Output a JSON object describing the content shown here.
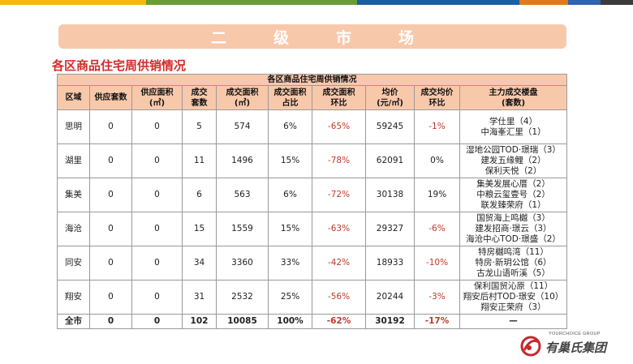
{
  "top_bar_colors": [
    "#f5b811",
    "#f5b811",
    "#6a9c3a",
    "#6a9c3a",
    "#1b5fa0",
    "#1b5fa0",
    "#e0781d",
    "#2f64b0",
    "#3b3b3b"
  ],
  "banner": {
    "title": "二级市场"
  },
  "section_title": "各区商品住宅周供销情况",
  "table": {
    "caption": "各区商品住宅周供销情况",
    "headers": [
      [
        "区域"
      ],
      [
        "供应套数"
      ],
      [
        "供应面积",
        "(㎡)"
      ],
      [
        "成交",
        "套数"
      ],
      [
        "成交面积",
        "(㎡)"
      ],
      [
        "成交面积",
        "占比"
      ],
      [
        "成交面积",
        "环比"
      ],
      [
        "均价",
        "(元/㎡)"
      ],
      [
        "成交均价",
        "环比"
      ],
      [
        "主力成交楼盘",
        "(套数)"
      ]
    ],
    "rows": [
      {
        "district": "思明",
        "supply_units": "0",
        "supply_area": "0",
        "deal_units": "5",
        "deal_area": "574",
        "area_share": "6%",
        "area_mom": "-65%",
        "avg_price": "59245",
        "price_mom": "-1%",
        "projects": [
          "学仕里（4）",
          "中海峯汇里（1）"
        ]
      },
      {
        "district": "湖里",
        "supply_units": "0",
        "supply_area": "0",
        "deal_units": "11",
        "deal_area": "1496",
        "area_share": "15%",
        "area_mom": "-78%",
        "avg_price": "62091",
        "price_mom": "0%",
        "projects": [
          "湿地公园TOD·璟瑞（3）",
          "建发五缘鲤（2）",
          "保利天悦（2）"
        ]
      },
      {
        "district": "集美",
        "supply_units": "0",
        "supply_area": "0",
        "deal_units": "6",
        "deal_area": "563",
        "area_share": "6%",
        "area_mom": "-72%",
        "avg_price": "30138",
        "price_mom": "19%",
        "projects": [
          "集美发展心厝（2）",
          "中粮云玺壹号（2）",
          "联发臻荣府（1）"
        ]
      },
      {
        "district": "海沧",
        "supply_units": "0",
        "supply_area": "0",
        "deal_units": "15",
        "deal_area": "1559",
        "area_share": "15%",
        "area_mom": "-63%",
        "avg_price": "29327",
        "price_mom": "-6%",
        "projects": [
          "国贸海上鸣樾（3）",
          "建发招商·璟云（3）",
          "海沧中心TOD·璟盛（2）"
        ]
      },
      {
        "district": "同安",
        "supply_units": "0",
        "supply_area": "0",
        "deal_units": "34",
        "deal_area": "3360",
        "area_share": "33%",
        "area_mom": "-42%",
        "avg_price": "18933",
        "price_mom": "-10%",
        "projects": [
          "特房樾鸣湾（11）",
          "特房·新玥公馆（6）",
          "古龙山语听溪（5）"
        ]
      },
      {
        "district": "翔安",
        "supply_units": "0",
        "supply_area": "0",
        "deal_units": "31",
        "deal_area": "2532",
        "area_share": "25%",
        "area_mom": "-56%",
        "avg_price": "20244",
        "price_mom": "-3%",
        "projects": [
          "保利国贸沁原（11）",
          "翔安后村TOD·璟安（10）",
          "翔安正荣府（3）"
        ]
      }
    ],
    "total": {
      "district": "全市",
      "supply_units": "0",
      "supply_area": "0",
      "deal_units": "102",
      "deal_area": "10085",
      "area_share": "100%",
      "area_mom": "-62%",
      "avg_price": "30192",
      "price_mom": "-17%",
      "projects": "—"
    }
  },
  "logo": {
    "en": "YOURCHOICE GROUP",
    "cn": "有巢氏集团",
    "accent": "#c8262c"
  }
}
